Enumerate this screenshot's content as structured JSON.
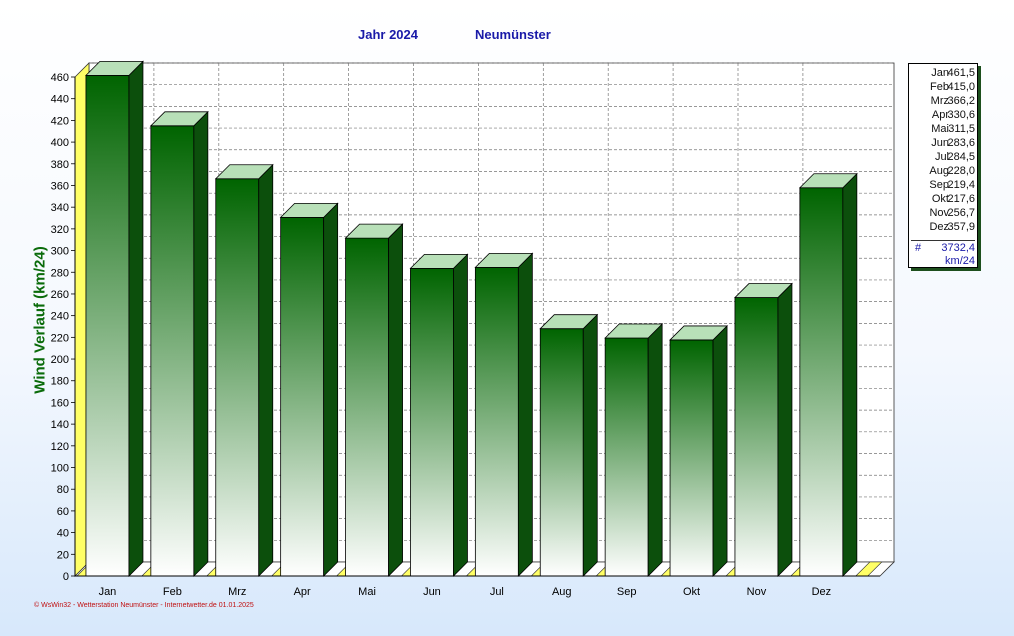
{
  "header": {
    "year_label": "Jahr  2024",
    "station": "Neumünster"
  },
  "chart_data": {
    "type": "bar",
    "ylabel": "Wind Verlauf  (km/24)",
    "xlabel": "",
    "categories": [
      "Jan",
      "Feb",
      "Mrz",
      "Apr",
      "Mai",
      "Jun",
      "Jul",
      "Aug",
      "Sep",
      "Okt",
      "Nov",
      "Dez"
    ],
    "values": [
      461.5,
      415.0,
      366.2,
      330.6,
      311.5,
      283.6,
      284.5,
      228.0,
      219.4,
      217.6,
      256.7,
      357.9
    ],
    "ylim": [
      0,
      460
    ],
    "yticks": [
      0,
      20,
      40,
      60,
      80,
      100,
      120,
      140,
      160,
      180,
      200,
      220,
      240,
      260,
      280,
      300,
      320,
      340,
      360,
      380,
      400,
      420,
      440,
      460
    ],
    "grid": true,
    "colors": {
      "bar_dark": "#006400",
      "bar_light": "#ffffff",
      "floor": "#ffff66",
      "title": "#1a1aa8",
      "ylabel": "#0a6b0a"
    }
  },
  "legend": {
    "rows": [
      {
        "month": "Jan",
        "value": "461,5"
      },
      {
        "month": "Feb",
        "value": "415,0"
      },
      {
        "month": "Mrz",
        "value": "366,2"
      },
      {
        "month": "Apr",
        "value": "330,6"
      },
      {
        "month": "Mai",
        "value": "311,5"
      },
      {
        "month": "Jun",
        "value": "283,6"
      },
      {
        "month": "Jul",
        "value": "284,5"
      },
      {
        "month": "Aug",
        "value": "228,0"
      },
      {
        "month": "Sep",
        "value": "219,4"
      },
      {
        "month": "Okt",
        "value": "217,6"
      },
      {
        "month": "Nov",
        "value": "256,7"
      },
      {
        "month": "Dez",
        "value": "357,9"
      }
    ],
    "total_symbol": "#",
    "total": "3732,4",
    "unit": "km/24"
  },
  "footer": "© WsWin32 - Wetterstation Neumünster - Internetwetter.de  01.01.2025"
}
